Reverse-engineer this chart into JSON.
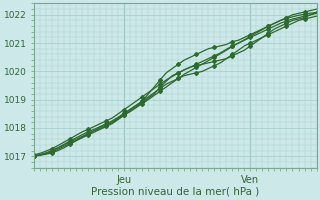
{
  "ylabel_values": [
    1017,
    1018,
    1019,
    1020,
    1021,
    1022
  ],
  "ylim": [
    1016.6,
    1022.4
  ],
  "xlim": [
    0,
    47
  ],
  "background_color": "#cce8e8",
  "grid_color": "#aacfcf",
  "line_color": "#2d6a2d",
  "tick_label_color": "#336633",
  "xlabel": "Pression niveau de la mer( hPa )",
  "jeu_x": 15,
  "ven_x": 36,
  "n_points": 48,
  "series": [
    [
      1017.0,
      1017.05,
      1017.1,
      1017.15,
      1017.25,
      1017.35,
      1017.45,
      1017.55,
      1017.65,
      1017.75,
      1017.85,
      1017.95,
      1018.05,
      1018.15,
      1018.3,
      1018.45,
      1018.6,
      1018.75,
      1018.9,
      1019.05,
      1019.2,
      1019.45,
      1019.65,
      1019.85,
      1019.95,
      1020.05,
      1020.15,
      1020.2,
      1020.25,
      1020.3,
      1020.35,
      1020.4,
      1020.45,
      1020.55,
      1020.65,
      1020.75,
      1020.9,
      1021.05,
      1021.2,
      1021.35,
      1021.5,
      1021.6,
      1021.7,
      1021.8,
      1021.85,
      1021.9,
      1022.0,
      1022.1
    ],
    [
      1017.0,
      1017.05,
      1017.1,
      1017.2,
      1017.3,
      1017.4,
      1017.5,
      1017.6,
      1017.7,
      1017.8,
      1017.9,
      1018.0,
      1018.1,
      1018.2,
      1018.35,
      1018.5,
      1018.65,
      1018.8,
      1018.95,
      1019.2,
      1019.45,
      1019.7,
      1019.95,
      1020.1,
      1020.25,
      1020.4,
      1020.5,
      1020.6,
      1020.7,
      1020.8,
      1020.85,
      1020.9,
      1020.95,
      1021.05,
      1021.1,
      1021.2,
      1021.3,
      1021.4,
      1021.5,
      1021.6,
      1021.7,
      1021.8,
      1021.9,
      1022.0,
      1022.05,
      1022.1,
      1022.15,
      1022.2
    ],
    [
      1017.0,
      1017.05,
      1017.12,
      1017.2,
      1017.3,
      1017.42,
      1017.54,
      1017.65,
      1017.76,
      1017.87,
      1017.95,
      1018.05,
      1018.15,
      1018.25,
      1018.38,
      1018.52,
      1018.66,
      1018.8,
      1018.94,
      1019.1,
      1019.25,
      1019.4,
      1019.55,
      1019.65,
      1019.75,
      1019.85,
      1019.9,
      1019.95,
      1020.0,
      1020.1,
      1020.2,
      1020.3,
      1020.45,
      1020.6,
      1020.75,
      1020.9,
      1021.0,
      1021.1,
      1021.2,
      1021.3,
      1021.4,
      1021.5,
      1021.6,
      1021.7,
      1021.8,
      1021.85,
      1021.9,
      1021.95
    ],
    [
      1017.05,
      1017.1,
      1017.18,
      1017.27,
      1017.38,
      1017.5,
      1017.62,
      1017.74,
      1017.86,
      1017.95,
      1018.05,
      1018.15,
      1018.25,
      1018.35,
      1018.5,
      1018.65,
      1018.8,
      1018.95,
      1019.1,
      1019.25,
      1019.4,
      1019.55,
      1019.7,
      1019.82,
      1019.94,
      1020.06,
      1020.15,
      1020.25,
      1020.35,
      1020.45,
      1020.55,
      1020.65,
      1020.78,
      1020.9,
      1021.0,
      1021.1,
      1021.2,
      1021.3,
      1021.4,
      1021.5,
      1021.6,
      1021.7,
      1021.78,
      1021.85,
      1021.9,
      1021.95,
      1022.0,
      1022.05
    ],
    [
      1017.0,
      1017.03,
      1017.07,
      1017.12,
      1017.2,
      1017.3,
      1017.42,
      1017.55,
      1017.68,
      1017.8,
      1017.9,
      1018.0,
      1018.1,
      1018.2,
      1018.32,
      1018.45,
      1018.58,
      1018.72,
      1018.86,
      1019.0,
      1019.15,
      1019.3,
      1019.45,
      1019.6,
      1019.75,
      1019.9,
      1020.02,
      1020.14,
      1020.26,
      1020.38,
      1020.5,
      1020.62,
      1020.75,
      1020.88,
      1021.0,
      1021.12,
      1021.24,
      1021.36,
      1021.48,
      1021.6,
      1021.7,
      1021.8,
      1021.87,
      1021.93,
      1021.98,
      1022.02,
      1022.06,
      1022.08
    ]
  ]
}
